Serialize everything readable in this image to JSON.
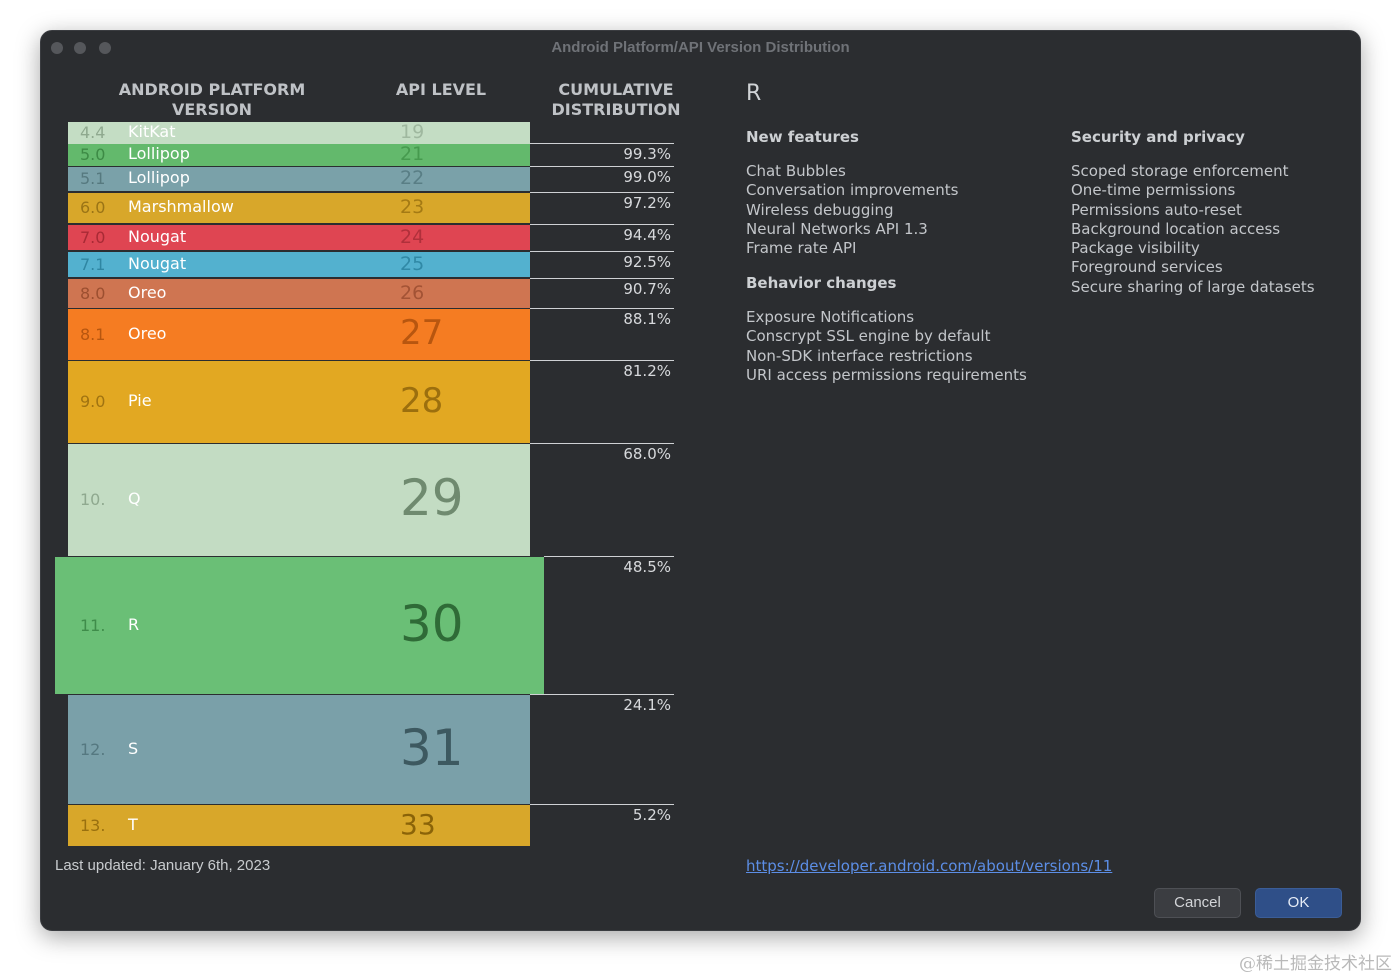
{
  "window": {
    "title": "Android Platform/API Version Distribution"
  },
  "headers": {
    "platform": "ANDROID PLATFORM\nVERSION",
    "api": "API LEVEL",
    "cumulative": "CUMULATIVE\nDISTRIBUTION"
  },
  "versions": [
    {
      "version": "4.4",
      "name": "KitKat",
      "api": "19",
      "cumulative": "",
      "color": "#c4ddc4",
      "verColor": "#8fa98f",
      "apiColor": "#9fb89f"
    },
    {
      "version": "5.0",
      "name": "Lollipop",
      "api": "21",
      "cumulative": "99.3%",
      "color": "#63b96c",
      "verColor": "#3d8a45",
      "apiColor": "#469a4e"
    },
    {
      "version": "5.1",
      "name": "Lollipop",
      "api": "22",
      "cumulative": "99.0%",
      "color": "#7aa1a9",
      "verColor": "#56797f",
      "apiColor": "#597e85"
    },
    {
      "version": "6.0",
      "name": "Marshmallow",
      "api": "23",
      "cumulative": "97.2%",
      "color": "#d8a72a",
      "verColor": "#9a7416",
      "apiColor": "#a47a14"
    },
    {
      "version": "7.0",
      "name": "Nougat",
      "api": "24",
      "cumulative": "94.4%",
      "color": "#df4552",
      "verColor": "#a82a35",
      "apiColor": "#b0303b"
    },
    {
      "version": "7.1",
      "name": "Nougat",
      "api": "25",
      "cumulative": "92.5%",
      "color": "#53b1cf",
      "verColor": "#2f86a2",
      "apiColor": "#3089a6"
    },
    {
      "version": "8.0",
      "name": "Oreo",
      "api": "26",
      "cumulative": "90.7%",
      "color": "#cf7551",
      "verColor": "#9c4f30",
      "apiColor": "#a35335"
    },
    {
      "version": "8.1",
      "name": "Oreo",
      "api": "27",
      "cumulative": "88.1%",
      "color": "#f57c22",
      "verColor": "#b7560f",
      "apiColor": "#b8560f"
    },
    {
      "version": "9.0",
      "name": "Pie",
      "api": "28",
      "cumulative": "81.2%",
      "color": "#e2a822",
      "verColor": "#a07311",
      "apiColor": "#9c6f0e"
    },
    {
      "version": "10.",
      "name": "Q",
      "api": "29",
      "cumulative": "68.0%",
      "color": "#c3dcc3",
      "verColor": "#8fa98f",
      "apiColor": "#6f8a6f"
    },
    {
      "version": "11.",
      "name": "R",
      "api": "30",
      "cumulative": "48.5%",
      "color": "#6abf76",
      "verColor": "#3f8c4a",
      "apiColor": "#2f6b37"
    },
    {
      "version": "12.",
      "name": "S",
      "api": "31",
      "cumulative": "24.1%",
      "color": "#7aa0a9",
      "verColor": "#557880",
      "apiColor": "#3d5960"
    },
    {
      "version": "13.",
      "name": "T",
      "api": "33",
      "cumulative": "5.2%",
      "color": "#d8a72a",
      "verColor": "#99700f",
      "apiColor": "#8a6308"
    }
  ],
  "selected_index": 10,
  "detail": {
    "title": "R",
    "new_features": {
      "heading": "New features",
      "items": [
        "Chat Bubbles",
        "Conversation improvements",
        "Wireless debugging",
        "Neural Networks API 1.3",
        "Frame rate API"
      ]
    },
    "behavior_changes": {
      "heading": "Behavior changes",
      "items": [
        "Exposure Notifications",
        "Conscrypt SSL engine by default",
        "Non-SDK interface restrictions",
        "URI access permissions requirements"
      ]
    },
    "security": {
      "heading": "Security and privacy",
      "items": [
        "Scoped storage enforcement",
        "One-time permissions",
        "Permissions auto-reset",
        "Background location access",
        "Package visibility",
        "Foreground services",
        "Secure sharing of large datasets"
      ]
    },
    "link": "https://developer.android.com/about/versions/11"
  },
  "footer": {
    "last_updated": "Last updated: January 6th, 2023"
  },
  "buttons": {
    "cancel": "Cancel",
    "ok": "OK"
  },
  "watermark": "@稀土掘金技术社区"
}
